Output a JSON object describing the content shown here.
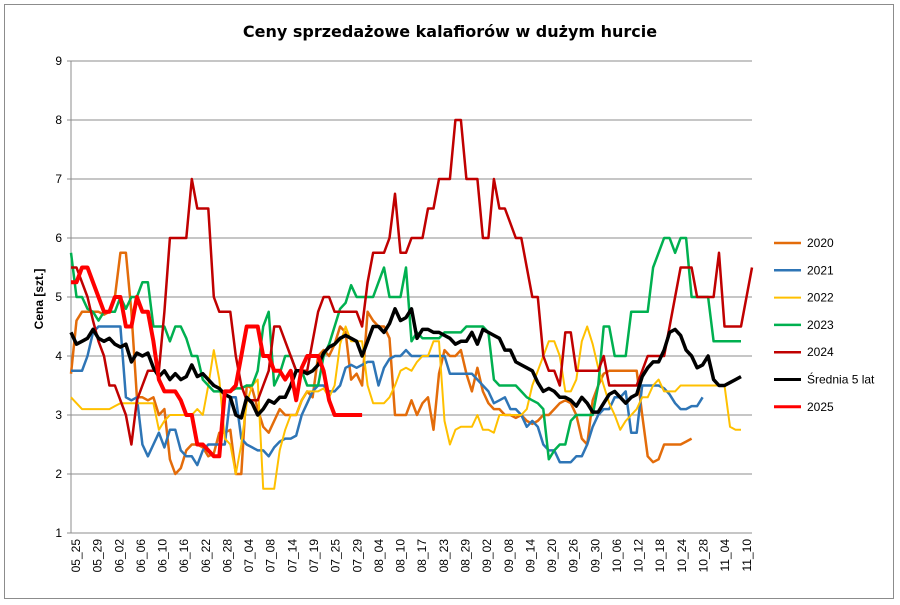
{
  "chart_data": {
    "type": "line",
    "title": "Ceny sprzedażowe kalafiorów w dużym hurcie",
    "xlabel": "",
    "ylabel": "Cena [szt.]",
    "ylim": [
      1,
      9
    ],
    "yticks": [
      "1",
      "2",
      "3",
      "4",
      "5",
      "6",
      "7",
      "8",
      "9"
    ],
    "grid": "horizontal",
    "legend_position": "right",
    "x_tick_labels": [
      "05_25",
      "05_29",
      "06_02",
      "06_06",
      "06_10",
      "06_16",
      "06_22",
      "06_28",
      "07_04",
      "07_08",
      "07_14",
      "07_19",
      "07_25",
      "07_29",
      "08_04",
      "08_10",
      "08_17",
      "08_23",
      "08_29",
      "09_02",
      "09_08",
      "09_14",
      "09_20",
      "09_26",
      "09_30",
      "10_06",
      "10_12",
      "10_18",
      "10_24",
      "10_28",
      "11_04",
      "11_10"
    ],
    "series": [
      {
        "name": "2020",
        "color": "#e36c0a",
        "width": 2.5,
        "values": [
          3.7,
          4.6,
          4.75,
          4.75,
          4.75,
          4.75,
          4.7,
          4.75,
          5,
          5.75,
          5.75,
          4.75,
          3.3,
          3.3,
          3.25,
          3.3,
          3,
          3.1,
          2.25,
          2,
          2.1,
          2.4,
          2.5,
          2.5,
          2.45,
          2.3,
          2.35,
          2.7,
          2.7,
          2.75,
          2,
          2,
          3.5,
          3.45,
          3.1,
          2.8,
          2.7,
          2.9,
          3.1,
          3,
          3,
          3,
          3.25,
          3.4,
          3.3,
          4,
          4.1,
          4,
          4.2,
          4.5,
          4.4,
          3.6,
          3.7,
          3.5,
          4.75,
          4.6,
          4.5,
          4.5,
          4.3,
          3,
          3,
          3,
          3.25,
          3,
          3.2,
          3.3,
          2.75,
          3.7,
          4.1,
          4,
          4,
          4.1,
          3.7,
          3.4,
          3.8,
          3.4,
          3.2,
          3.1,
          3.1,
          3,
          3,
          2.95,
          3,
          2.9,
          2.85,
          2.9,
          3,
          3,
          3.1,
          3.2,
          3.25,
          3.2,
          3,
          2.6,
          2.5,
          3.25,
          3.5,
          3.7,
          3.75,
          3.75,
          3.75,
          3.75,
          3.75,
          3.75,
          3,
          2.3,
          2.2,
          2.25,
          2.5,
          2.5,
          2.5,
          2.5,
          2.55,
          2.6
        ]
      },
      {
        "name": "2021",
        "color": "#2e75b6",
        "width": 2.5,
        "values": [
          3.75,
          3.75,
          3.75,
          4,
          4.4,
          4.5,
          4.5,
          4.5,
          4.5,
          4.5,
          3.3,
          3.25,
          3.3,
          2.5,
          2.3,
          2.5,
          2.7,
          2.45,
          2.75,
          2.75,
          2.4,
          2.3,
          2.3,
          2.15,
          2.4,
          2.5,
          2.5,
          2.5,
          2.5,
          3.3,
          3.3,
          2.6,
          2.5,
          2.45,
          2.4,
          2.4,
          2.3,
          2.45,
          2.55,
          2.6,
          2.6,
          2.65,
          3,
          3.2,
          3.4,
          3.5,
          3.5,
          3.4,
          3.4,
          3.5,
          3.8,
          3.85,
          3.8,
          3.85,
          3.9,
          3.9,
          3.5,
          3.8,
          3.95,
          4,
          4,
          4.1,
          4,
          4,
          4,
          4,
          4,
          4,
          4,
          3.7,
          3.7,
          3.7,
          3.7,
          3.7,
          3.6,
          3.5,
          3.4,
          3.2,
          3.25,
          3.3,
          3.1,
          3.1,
          3,
          2.8,
          2.9,
          2.8,
          2.5,
          2.4,
          2.4,
          2.2,
          2.2,
          2.2,
          2.3,
          2.3,
          2.5,
          2.8,
          3,
          3.1,
          3.1,
          3.3,
          3.3,
          3.4,
          2.7,
          2.7,
          3.5,
          3.5,
          3.5,
          3.5,
          3.45,
          3.35,
          3.2,
          3.1,
          3.1,
          3.15,
          3.15,
          3.3
        ]
      },
      {
        "name": "2022",
        "color": "#ffc000",
        "width": 2,
        "values": [
          3.3,
          3.2,
          3.1,
          3.1,
          3.1,
          3.1,
          3.1,
          3.1,
          3.15,
          3.2,
          3.2,
          3.2,
          3.2,
          3.2,
          3.2,
          3.2,
          2.75,
          2.9,
          3,
          3,
          3,
          3,
          3,
          3.1,
          3,
          3.5,
          4.1,
          3.6,
          2.6,
          2.5,
          2,
          2.5,
          3.2,
          3.5,
          3.6,
          1.75,
          1.75,
          1.75,
          2.4,
          2.75,
          3,
          3,
          3.25,
          3.4,
          3.4,
          3.4,
          3.45,
          3.3,
          3.5,
          4.2,
          4.5,
          4.25,
          4.25,
          4.25,
          3.5,
          3.2,
          3.2,
          3.2,
          3.3,
          3.5,
          3.75,
          3.8,
          3.75,
          3.9,
          4,
          4,
          4.25,
          4.25,
          2.9,
          2.5,
          2.75,
          2.8,
          2.8,
          2.8,
          3,
          2.75,
          2.75,
          2.7,
          3,
          3,
          3,
          3,
          3,
          3.1,
          3.5,
          3.75,
          4,
          4.25,
          4.25,
          4,
          3.4,
          3.4,
          3.6,
          4.25,
          4.5,
          4.2,
          3.8,
          3.5,
          3.2,
          3,
          2.75,
          2.9,
          3,
          3.1,
          3.3,
          3.3,
          3.5,
          3.6,
          3.4,
          3.4,
          3.4,
          3.5,
          3.5,
          3.5,
          3.5,
          3.5,
          3.5,
          3.5,
          3.5,
          3.5,
          2.8,
          2.75,
          2.75
        ]
      },
      {
        "name": "2023",
        "color": "#00b050",
        "width": 2.5,
        "values": [
          5.75,
          5,
          5,
          4.8,
          4.75,
          4.6,
          4.75,
          4.75,
          4.75,
          5,
          4.8,
          5,
          5,
          5.25,
          5.25,
          4.5,
          4.5,
          4.5,
          4.25,
          4.5,
          4.5,
          4.3,
          4,
          4,
          3.6,
          3.5,
          3.4,
          3.4,
          3.4,
          3.4,
          3.45,
          3.45,
          3.5,
          3.5,
          3.75,
          4.5,
          4.75,
          3.5,
          3.7,
          4,
          4,
          3.75,
          3.75,
          3.5,
          3.5,
          3.5,
          4,
          4.2,
          4.5,
          4.8,
          4.9,
          5.2,
          5,
          5,
          5,
          5,
          5.25,
          5.5,
          5,
          5,
          5,
          5.5,
          4.25,
          4.4,
          4.3,
          4.3,
          4.3,
          4.3,
          4.4,
          4.4,
          4.4,
          4.4,
          4.5,
          4.5,
          4.5,
          4.5,
          4.4,
          3.6,
          3.5,
          3.5,
          3.5,
          3.5,
          3.4,
          3.3,
          3.25,
          3.2,
          3.1,
          2.25,
          2.4,
          2.5,
          2.5,
          2.9,
          3,
          3,
          3,
          3,
          3.5,
          4.5,
          4.5,
          4,
          4,
          4,
          4.75,
          4.75,
          4.75,
          4.75,
          5.5,
          5.75,
          6,
          6,
          5.75,
          6,
          6,
          5,
          5,
          5,
          5,
          4.25,
          4.25,
          4.25,
          4.25,
          4.25,
          4.25
        ]
      },
      {
        "name": "2024",
        "color": "#c00000",
        "width": 2.5,
        "values": [
          5.5,
          5.5,
          5.25,
          5,
          4.6,
          4.25,
          4,
          3.5,
          3.5,
          3.25,
          3,
          2.5,
          3.25,
          3.5,
          3.75,
          3.75,
          3.75,
          4.75,
          6,
          6,
          6,
          6,
          7,
          6.5,
          6.5,
          6.5,
          5,
          4.75,
          4.75,
          4.75,
          4,
          3.5,
          3.25,
          3.25,
          3.25,
          3.5,
          3.75,
          4.5,
          4.5,
          4.25,
          4,
          3.75,
          3.75,
          3.75,
          4.25,
          4.75,
          5,
          5,
          4.75,
          4.75,
          4.75,
          4.75,
          4.75,
          4.5,
          5.25,
          5.75,
          5.75,
          5.75,
          6,
          6.75,
          5.75,
          5.75,
          6,
          6,
          6,
          6.5,
          6.5,
          7,
          7,
          7,
          8,
          8,
          7,
          7,
          7,
          6,
          6,
          7,
          6.5,
          6.5,
          6.25,
          6,
          6,
          5.5,
          5,
          5,
          4,
          3.75,
          3.75,
          3.5,
          4.4,
          4.4,
          3.75,
          3.75,
          3.75,
          3.75,
          3.75,
          4,
          3.5,
          3.5,
          3.5,
          3.5,
          3.5,
          3.5,
          3.75,
          4,
          4,
          4,
          4,
          4.5,
          5,
          5.5,
          5.5,
          5.5,
          5,
          5,
          5,
          5,
          5.75,
          4.5,
          4.5,
          4.5,
          4.5,
          5,
          5.5
        ]
      },
      {
        "name": "Średnia 5 lat",
        "color": "#000000",
        "width": 3.5,
        "values": [
          4.4,
          4.2,
          4.25,
          4.3,
          4.45,
          4.3,
          4.25,
          4.3,
          4.2,
          4.15,
          4.2,
          3.9,
          4.05,
          4,
          4.05,
          3.8,
          3.65,
          3.75,
          3.6,
          3.7,
          3.6,
          3.65,
          3.85,
          3.65,
          3.7,
          3.6,
          3.5,
          3.45,
          3.35,
          3.3,
          3,
          2.95,
          3.3,
          3.2,
          3,
          3.1,
          3.25,
          3.2,
          3.3,
          3.3,
          3.5,
          3.75,
          3.75,
          3.7,
          3.75,
          3.85,
          4.05,
          4.15,
          4.2,
          4.3,
          4.35,
          4.3,
          4.25,
          4,
          4.25,
          4.5,
          4.5,
          4.4,
          4.55,
          4.8,
          4.6,
          4.65,
          4.8,
          4.3,
          4.45,
          4.45,
          4.4,
          4.4,
          4.35,
          4.3,
          4.2,
          4.25,
          4.25,
          4.4,
          4.2,
          4.45,
          4.4,
          4.35,
          4.3,
          4.1,
          4.1,
          3.9,
          3.85,
          3.8,
          3.75,
          3.55,
          3.4,
          3.45,
          3.4,
          3.3,
          3.3,
          3.25,
          3.15,
          3.3,
          3.2,
          3.05,
          3.05,
          3.2,
          3.35,
          3.4,
          3.3,
          3.2,
          3.3,
          3.35,
          3.65,
          3.8,
          3.9,
          3.9,
          4.1,
          4.4,
          4.45,
          4.35,
          4.1,
          4,
          3.8,
          3.85,
          4,
          3.6,
          3.5,
          3.5,
          3.55,
          3.6,
          3.65
        ]
      },
      {
        "name": "2025",
        "color": "#ff0000",
        "width": 4,
        "values": [
          5.25,
          5.25,
          5.5,
          5.5,
          5.25,
          5,
          4.75,
          4.75,
          5,
          5,
          4.5,
          4.5,
          5,
          4.75,
          4.75,
          4.25,
          3.6,
          3.4,
          3.4,
          3.4,
          3.25,
          3,
          3,
          2.5,
          2.5,
          2.4,
          2.3,
          2.3,
          3.4,
          3.4,
          3.5,
          4,
          4.5,
          4.5,
          4.5,
          4,
          4,
          3.75,
          3.75,
          3.6,
          3.75,
          3.25,
          3.8,
          4,
          4,
          4,
          3.75,
          3.25,
          3,
          3,
          3,
          3,
          3,
          3
        ]
      }
    ]
  }
}
